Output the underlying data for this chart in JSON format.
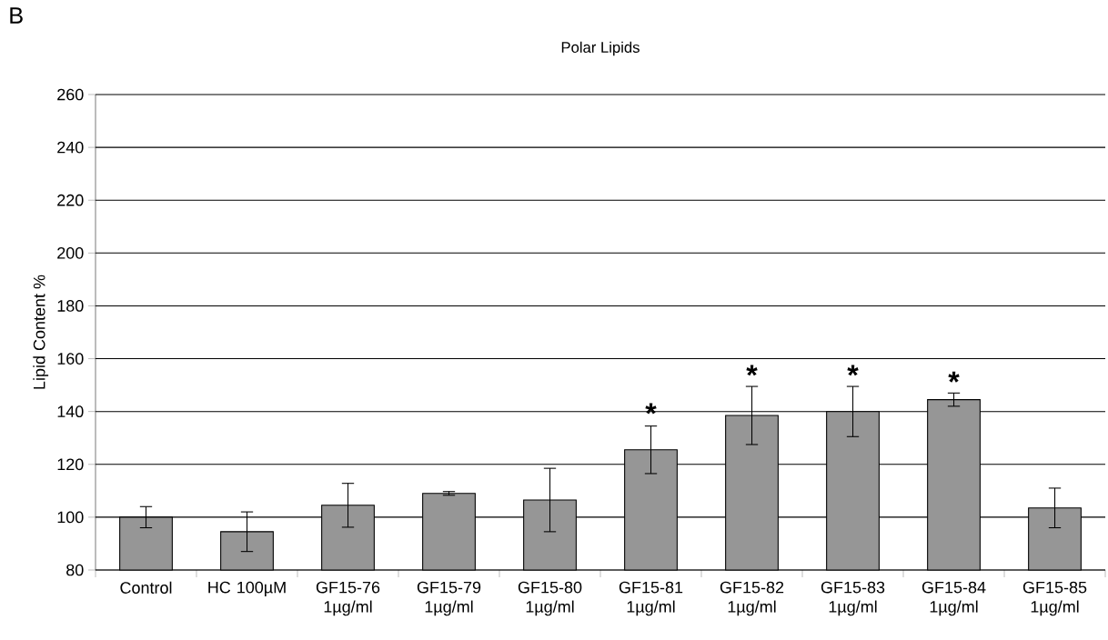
{
  "chart_data": {
    "type": "bar",
    "title": "Polar Lipids",
    "ylabel": "Lipid Content %",
    "categories": [
      "Control",
      "HC 100µM",
      "GF15-76 1µg/ml",
      "GF15-79 1µg/ml",
      "GF15-80 1µg/ml",
      "GF15-81 1µg/ml",
      "GF15-82 1µg/ml",
      "GF15-83 1µg/ml",
      "GF15-84 1µg/ml",
      "GF15-85 1µg/ml"
    ],
    "values": [
      100,
      94.5,
      104.5,
      109,
      106.5,
      125.5,
      138.5,
      140,
      144.5,
      103.5
    ],
    "errors": [
      4,
      7.5,
      8.3,
      0.7,
      12,
      9,
      11,
      9.5,
      2.5,
      7.5
    ],
    "color": "#969696",
    "ylim": [
      80,
      260
    ],
    "yticks": [
      80,
      100,
      120,
      140,
      160,
      180,
      200,
      220,
      240,
      260
    ],
    "grid": "y",
    "annotations": [
      "B",
      {
        "text": "*",
        "x": "GF15-81 1µg/ml",
        "y": 135
      },
      {
        "text": "*",
        "x": "GF15-82 1µg/ml",
        "y": 149.5
      },
      {
        "text": "*",
        "x": "GF15-83 1µg/ml",
        "y": 149.5
      },
      {
        "text": "*",
        "x": "GF15-84 1µg/ml",
        "y": 147
      }
    ]
  }
}
